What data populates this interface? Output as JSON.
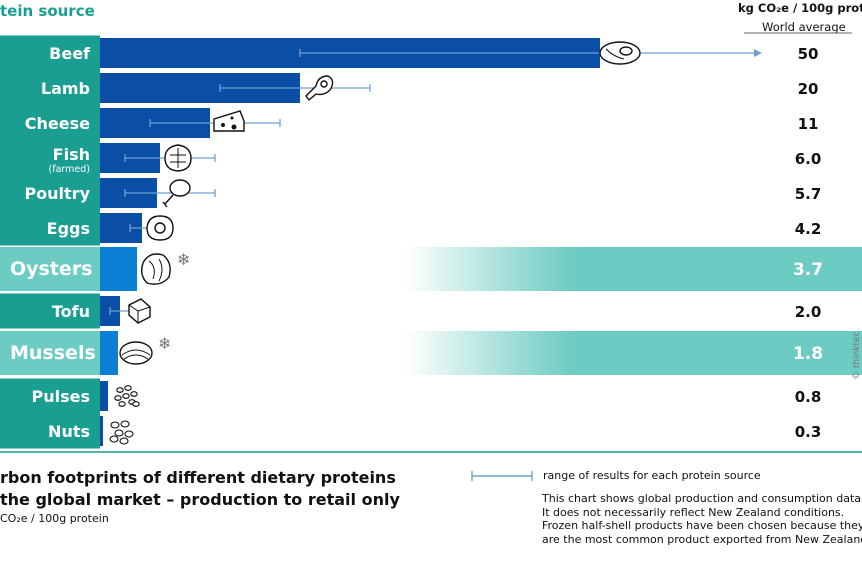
{
  "header": {
    "title": "tein source",
    "unit": "kg CO₂e / 100g prote",
    "subheading": "World  average"
  },
  "colors": {
    "label_teal": "#1a9e92",
    "highlight_teal": "#6ccbc2",
    "bar_blue": "#0a4ea6",
    "highlight_bar": "#0b7fd3",
    "range_line": "#6f9fd0"
  },
  "chart_data": {
    "type": "bar",
    "orientation": "horizontal",
    "categories": [
      "Beef",
      "Lamb",
      "Cheese",
      "Fish",
      "Poultry",
      "Eggs",
      "Oysters",
      "Tofu",
      "Mussels",
      "Pulses",
      "Nuts"
    ],
    "category_notes": {
      "Fish": "(farmed)"
    },
    "values": [
      50,
      20,
      11,
      6.0,
      5.7,
      4.2,
      3.7,
      2.0,
      1.8,
      0.8,
      0.3
    ],
    "value_labels": [
      "50",
      "20",
      "11",
      "6.0",
      "5.7",
      "4.2",
      "3.7",
      "2.0",
      "1.8",
      "0.8",
      "0.3"
    ],
    "highlighted": [
      "Oysters",
      "Mussels"
    ],
    "highlight_marker": "❄",
    "ranges": [
      {
        "category": "Beef",
        "low": 20,
        "high": 110
      },
      {
        "category": "Lamb",
        "low": 12,
        "high": 27
      },
      {
        "category": "Cheese",
        "low": 5,
        "high": 18
      },
      {
        "category": "Fish",
        "low": 2.5,
        "high": 11.5
      },
      {
        "category": "Poultry",
        "low": 2.5,
        "high": 11.5
      },
      {
        "category": "Eggs",
        "low": 3,
        "high": 6
      },
      {
        "category": "Tofu",
        "low": 1,
        "high": 3
      }
    ],
    "icons": [
      "steak-icon",
      "lamb-chop-icon",
      "cheese-icon",
      "fish-steak-icon",
      "drumstick-icon",
      "fried-egg-icon",
      "oyster-icon",
      "tofu-icon",
      "mussel-icon",
      "pulses-icon",
      "nuts-icon"
    ],
    "xlim": [
      0,
      110
    ],
    "legend": "range of results for each protein source"
  },
  "footer": {
    "title_line1": "rbon footprints of different dietary proteins",
    "title_line2": "the global market – production to retail only",
    "unit": "CO₂e / 100g protein",
    "legend_text": "range of results for each protein source",
    "notes": [
      "This chart shows global production and consumption data",
      "It does not necessarily reflect New Zealand conditions.",
      "Frozen half-shell products have been chosen because they",
      "are the most common product exported from New Zealand"
    ],
    "credit": "© thinktec"
  }
}
